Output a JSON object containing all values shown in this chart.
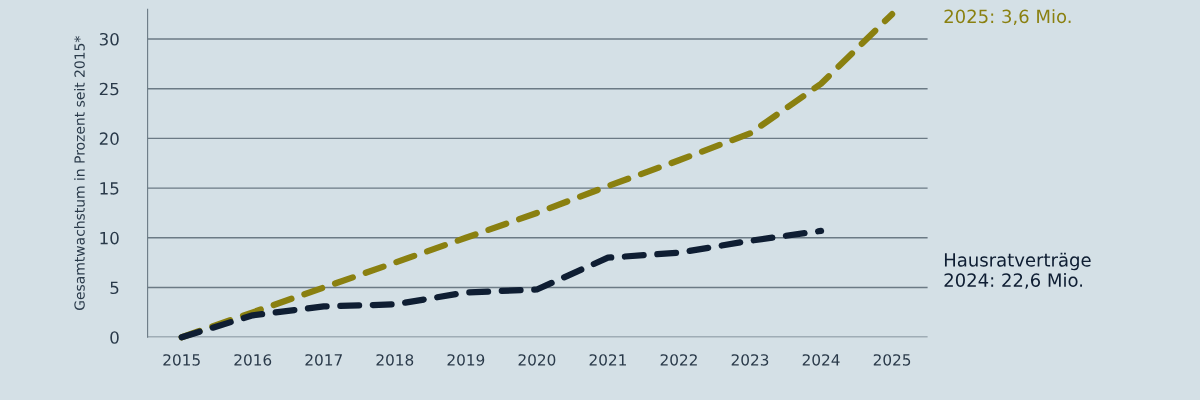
{
  "chart_data": {
    "type": "line",
    "ylabel": "Gesamtwachstum in Prozent seit 2015*",
    "categories": [
      "2015",
      "2016",
      "2017",
      "2018",
      "2019",
      "2020",
      "2021",
      "2022",
      "2023",
      "2024",
      "2025"
    ],
    "series": [
      {
        "name": "2025: 3,6 Mio.",
        "color": "#8a8010",
        "values": [
          0,
          2.5,
          5,
          7.5,
          10,
          12.5,
          15.2,
          17.8,
          20.5,
          25.5,
          32.5
        ]
      },
      {
        "name": "Hausratverträge\n2024: 22,6 Mio.",
        "color": "#0f1e33",
        "values": [
          0,
          2.2,
          3.1,
          3.3,
          4.5,
          4.8,
          8,
          8.5,
          9.7,
          10.7,
          null
        ]
      }
    ],
    "ylim": [
      0,
      33
    ],
    "yticks": [
      0,
      5,
      10,
      15,
      20,
      25,
      30
    ],
    "grid": "y",
    "line_style": "dashed",
    "marker": "none",
    "legend": false
  }
}
